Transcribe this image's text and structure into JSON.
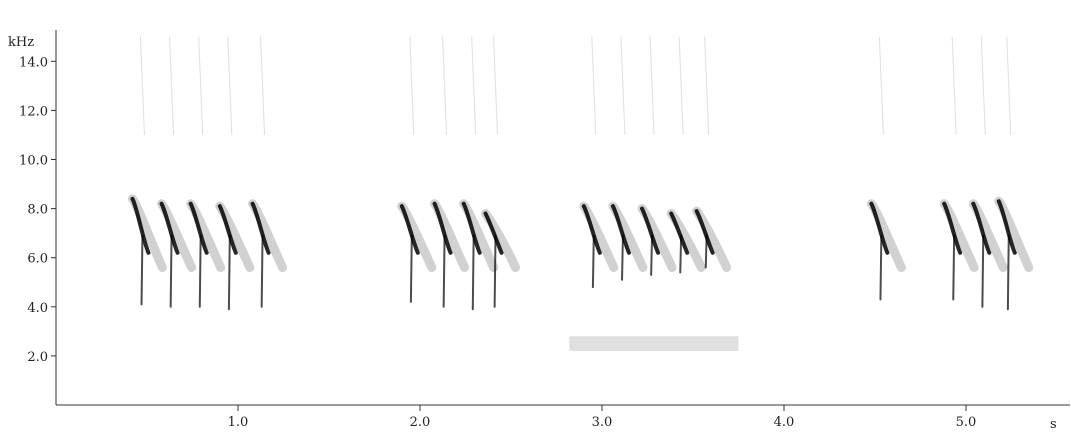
{
  "chart_data": {
    "type": "heatmap",
    "title": "",
    "xlabel": "s",
    "ylabel": "kHz",
    "xlim": [
      0,
      5.65
    ],
    "ylim": [
      0,
      15.5
    ],
    "x_ticks": [
      1.0,
      2.0,
      3.0,
      4.0,
      5.0
    ],
    "x_tick_labels": [
      "1.0",
      "2.0",
      "3.0",
      "4.0",
      "5.0"
    ],
    "y_ticks": [
      2.0,
      4.0,
      6.0,
      8.0,
      10.0,
      12.0,
      14.0
    ],
    "y_tick_labels": [
      "2.0",
      "4.0",
      "6.0",
      "8.0",
      "10.0",
      "12.0",
      "14.0"
    ],
    "grid": false,
    "color": "#000000",
    "phrases": [
      {
        "notes": [
          {
            "t": 0.42,
            "f_top": 8.4,
            "f_bottom": 4.1
          },
          {
            "t": 0.58,
            "f_top": 8.2,
            "f_bottom": 4.0
          },
          {
            "t": 0.74,
            "f_top": 8.2,
            "f_bottom": 4.0
          },
          {
            "t": 0.9,
            "f_top": 8.1,
            "f_bottom": 3.9
          },
          {
            "t": 1.08,
            "f_top": 8.2,
            "f_bottom": 4.0
          }
        ]
      },
      {
        "notes": [
          {
            "t": 1.9,
            "f_top": 8.1,
            "f_bottom": 4.2
          },
          {
            "t": 2.08,
            "f_top": 8.2,
            "f_bottom": 4.0
          },
          {
            "t": 2.24,
            "f_top": 8.2,
            "f_bottom": 3.9
          },
          {
            "t": 2.36,
            "f_top": 7.8,
            "f_bottom": 4.0
          }
        ]
      },
      {
        "notes": [
          {
            "t": 2.9,
            "f_top": 8.1,
            "f_bottom": 4.8
          },
          {
            "t": 3.06,
            "f_top": 8.1,
            "f_bottom": 5.1
          },
          {
            "t": 3.22,
            "f_top": 8.0,
            "f_bottom": 5.3
          },
          {
            "t": 3.38,
            "f_top": 7.8,
            "f_bottom": 5.4
          },
          {
            "t": 3.52,
            "f_top": 7.9,
            "f_bottom": 5.6
          }
        ]
      },
      {
        "notes": [
          {
            "t": 4.48,
            "f_top": 8.2,
            "f_bottom": 4.3
          }
        ]
      },
      {
        "notes": [
          {
            "t": 4.88,
            "f_top": 8.2,
            "f_bottom": 4.3
          },
          {
            "t": 5.04,
            "f_top": 8.2,
            "f_bottom": 4.0
          },
          {
            "t": 5.18,
            "f_top": 8.3,
            "f_bottom": 3.9
          }
        ]
      }
    ],
    "noise_bands": [
      {
        "t_start": 2.82,
        "t_end": 3.75,
        "f_low": 2.2,
        "f_high": 2.8
      }
    ]
  }
}
